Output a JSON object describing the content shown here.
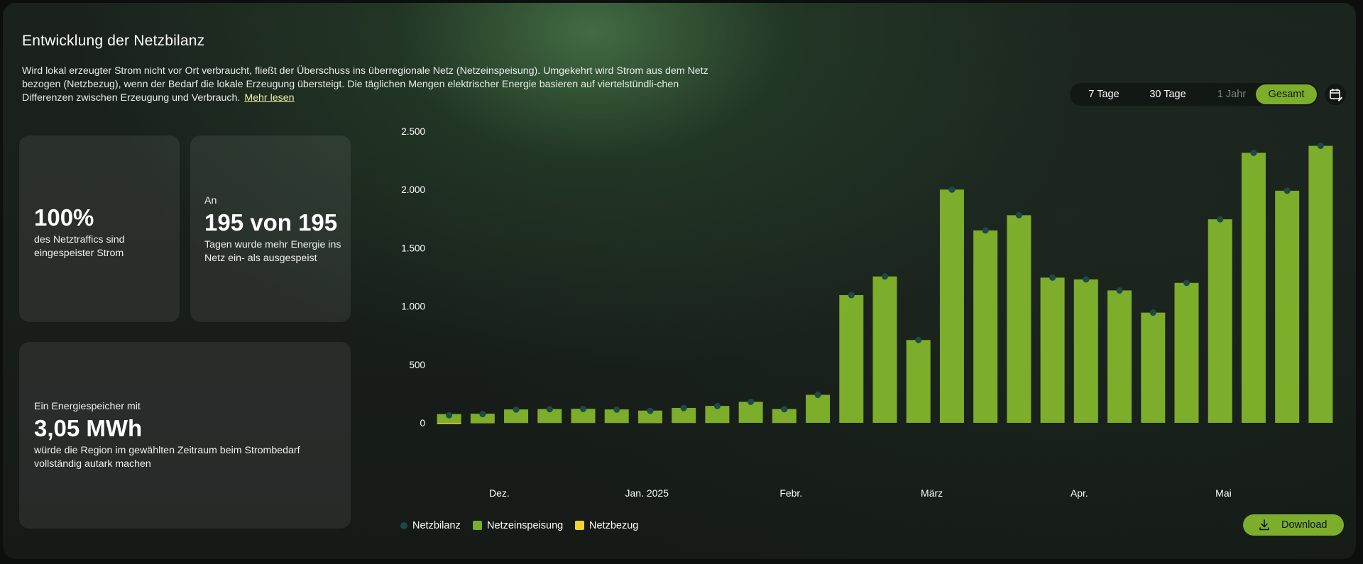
{
  "header": {
    "title": "Entwicklung der Netzbilanz",
    "intro_text": "Wird lokal erzeugter Strom nicht vor Ort verbraucht, fließt der Überschuss ins überregionale Netz (Netzeinspeisung). Umgekehrt wird Strom aus dem Netz bezogen (Netzbezug), wenn der Bedarf die lokale Erzeugung übersteigt. Die täglichen Mengen elektrischer Energie basieren auf viertelstündli-chen Differenzen zwischen Erzeugung und Verbrauch.",
    "read_more": "Mehr lesen"
  },
  "cards": {
    "share": {
      "value": "100%",
      "text": "des Netztraffics sind eingespeister Strom"
    },
    "days": {
      "prefix": "An",
      "value": "195 von 195",
      "text": "Tagen wurde mehr Energie ins Netz ein- als ausgespeist"
    },
    "storage": {
      "prefix": "Ein Energiespeicher mit",
      "value": "3,05 MWh",
      "text": "würde die Region im gewählten Zeitraum beim Strombedarf vollständig autark machen"
    }
  },
  "range_selector": {
    "options": [
      "7 Tage",
      "30 Tage",
      "1 Jahr",
      "Gesamt"
    ],
    "active": "Gesamt",
    "disabled": [
      "1 Jahr"
    ]
  },
  "icons": {
    "calendar": "calendar-edit-icon",
    "download": "download-icon"
  },
  "colors": {
    "feed_in": "#7cad2b",
    "draw": "#f2d22e",
    "balance": "#1d4a45",
    "accent": "#7cad2b"
  },
  "legend": {
    "balance": "Netzbilanz",
    "feed_in": "Netzeinspeisung",
    "draw": "Netzbezug"
  },
  "download_label": "Download",
  "chart_data": {
    "type": "bar",
    "ylim": [
      0,
      2500
    ],
    "yticks": [
      0,
      500,
      1000,
      1500,
      2000,
      2500
    ],
    "ytick_labels": [
      "0",
      "500",
      "1.000",
      "1.500",
      "2.000",
      "2.500"
    ],
    "x_labels": [
      {
        "label": "Dez.",
        "at": 1.5
      },
      {
        "label": "Jan. 2025",
        "at": 5.9
      },
      {
        "label": "Febr.",
        "at": 10.2
      },
      {
        "label": "März",
        "at": 14.4
      },
      {
        "label": "Apr.",
        "at": 18.8
      },
      {
        "label": "Mai",
        "at": 23.1
      }
    ],
    "series": [
      {
        "name": "Netzeinspeisung",
        "kind": "bar",
        "values": [
          75,
          78,
          115,
          118,
          120,
          115,
          105,
          128,
          145,
          180,
          118,
          240,
          1095,
          1255,
          710,
          2000,
          1650,
          1780,
          1245,
          1230,
          1135,
          945,
          1200,
          1745,
          2315,
          1990,
          2375
        ]
      },
      {
        "name": "Netzbezug",
        "kind": "bar",
        "values": [
          -10,
          -3,
          -1,
          -1,
          -1,
          -1,
          -2,
          -1,
          -1,
          0,
          -1,
          0,
          0,
          0,
          0,
          0,
          0,
          0,
          0,
          0,
          0,
          0,
          0,
          0,
          0,
          0,
          0
        ]
      },
      {
        "name": "Netzbilanz",
        "kind": "point",
        "values": [
          65,
          75,
          114,
          117,
          119,
          114,
          103,
          127,
          144,
          180,
          117,
          240,
          1095,
          1255,
          710,
          2000,
          1650,
          1780,
          1245,
          1230,
          1135,
          945,
          1200,
          1745,
          2315,
          1990,
          2375
        ]
      }
    ]
  }
}
